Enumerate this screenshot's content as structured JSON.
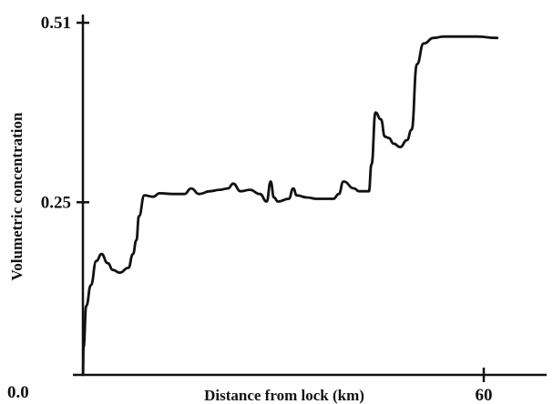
{
  "chart_data": {
    "type": "line",
    "title": "",
    "xlabel": "Distance from lock (km)",
    "ylabel": "Volumetric concentration",
    "xlim": [
      0,
      70
    ],
    "ylim": [
      0.0,
      0.51
    ],
    "x_ticks": [
      {
        "value": 60,
        "label": "60"
      }
    ],
    "y_ticks": [
      {
        "value": 0.0,
        "label": "0.0"
      },
      {
        "value": 0.25,
        "label": "0.25"
      },
      {
        "value": 0.51,
        "label": "0.51"
      }
    ],
    "grid": false,
    "legend": "none",
    "line_color": "#111111",
    "series": [
      {
        "name": "",
        "x": [
          0.0,
          0.1,
          0.5,
          1.2,
          2.0,
          2.8,
          3.7,
          4.5,
          5.5,
          6.8,
          7.5,
          8.0,
          8.4,
          9.2,
          10.5,
          11.5,
          13.5,
          15.2,
          16.2,
          17.4,
          19.0,
          20.5,
          21.7,
          22.5,
          23.6,
          25.0,
          26.5,
          27.5,
          28.1,
          28.6,
          29.2,
          30.8,
          31.5,
          32.0,
          33.5,
          35.0,
          36.3,
          37.5,
          38.3,
          39.0,
          40.6,
          41.3,
          42.8,
          43.2,
          43.8,
          44.6,
          45.2,
          45.8,
          46.5,
          47.5,
          48.5,
          49.2,
          50.0,
          51.0,
          52.5,
          54.0,
          56.5,
          59.0,
          62.0
        ],
        "y": [
          0.0,
          0.04,
          0.1,
          0.13,
          0.165,
          0.175,
          0.162,
          0.152,
          0.148,
          0.155,
          0.175,
          0.195,
          0.23,
          0.26,
          0.258,
          0.263,
          0.262,
          0.262,
          0.27,
          0.262,
          0.266,
          0.268,
          0.27,
          0.277,
          0.266,
          0.268,
          0.262,
          0.251,
          0.28,
          0.257,
          0.251,
          0.255,
          0.27,
          0.26,
          0.257,
          0.255,
          0.255,
          0.255,
          0.262,
          0.28,
          0.27,
          0.266,
          0.266,
          0.305,
          0.38,
          0.37,
          0.345,
          0.343,
          0.335,
          0.33,
          0.34,
          0.355,
          0.45,
          0.48,
          0.488,
          0.49,
          0.49,
          0.49,
          0.488
        ]
      }
    ]
  }
}
